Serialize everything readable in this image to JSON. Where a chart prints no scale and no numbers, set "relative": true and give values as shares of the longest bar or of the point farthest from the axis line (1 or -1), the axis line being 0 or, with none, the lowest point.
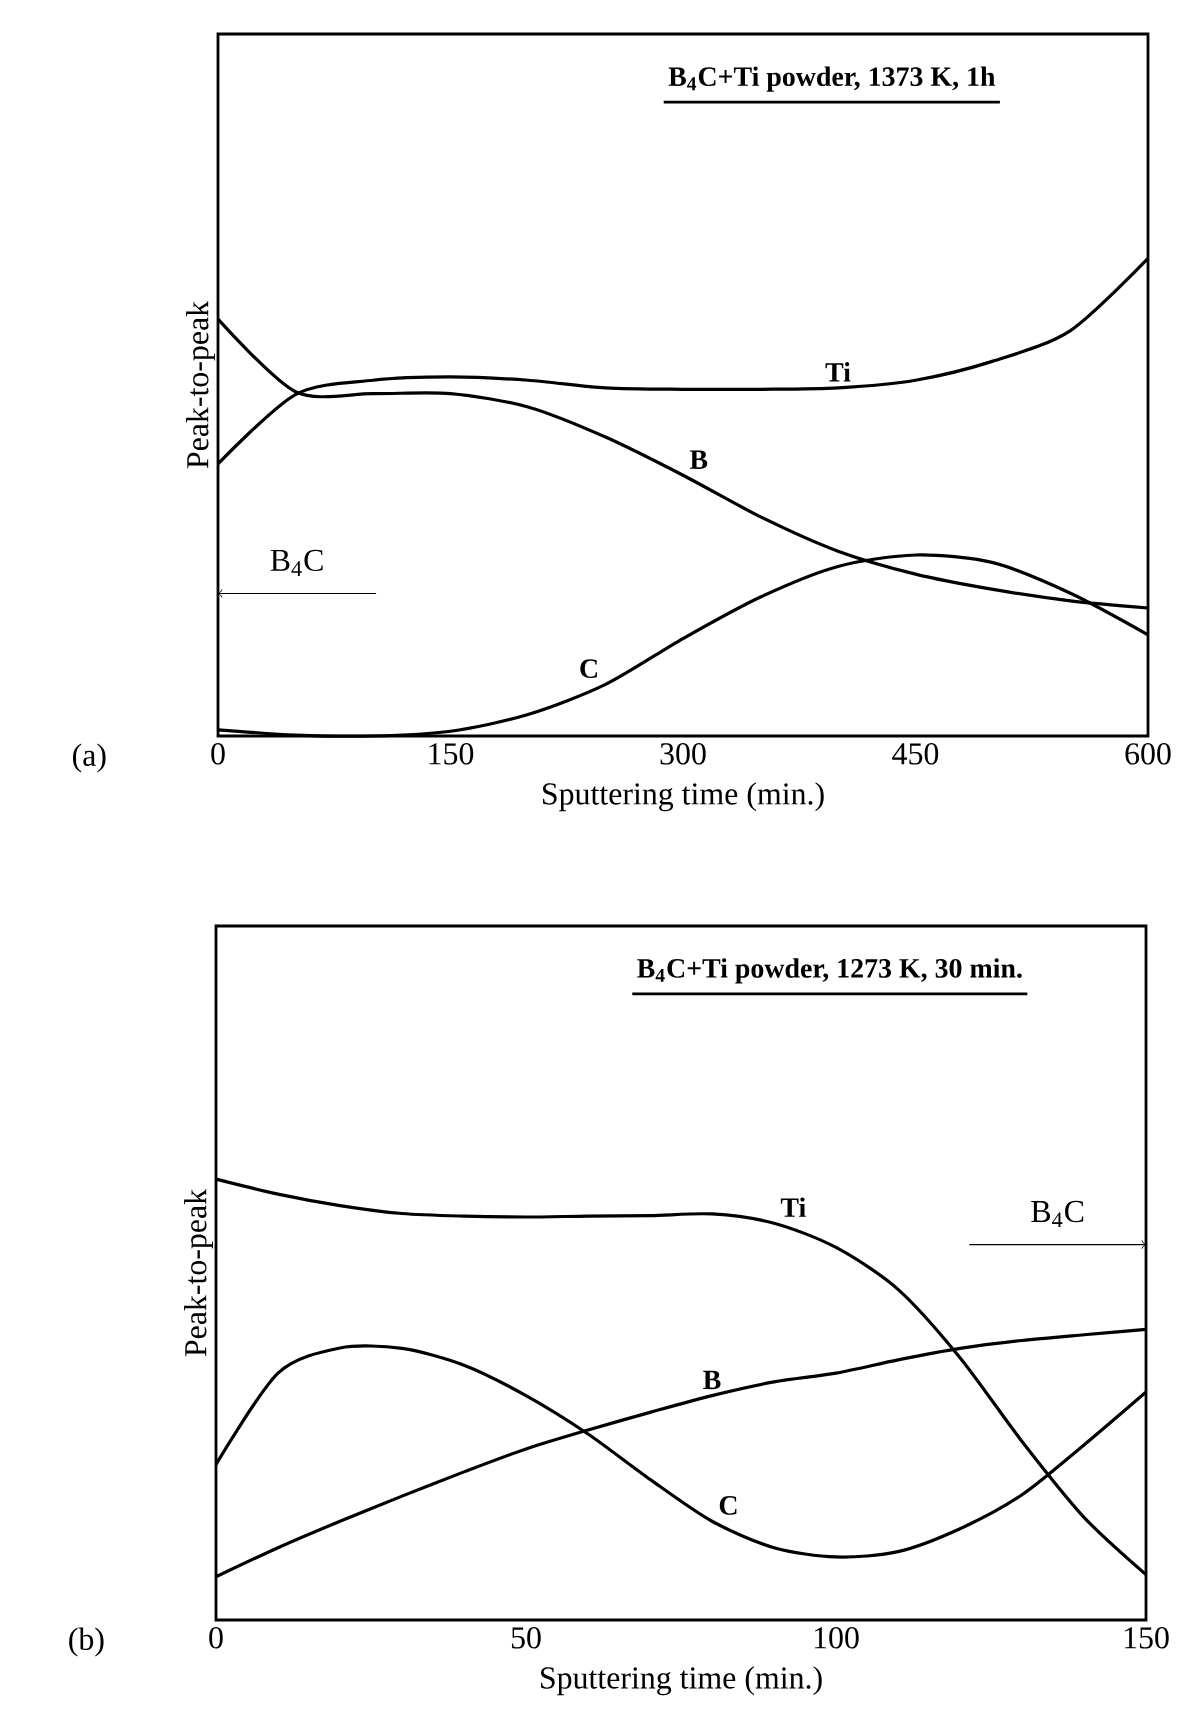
{
  "chart_data": [
    {
      "type": "line",
      "title": "B$_{4}$C+Ti powder, 1373 K, 1h",
      "xlabel": "Sputtering time (min.)",
      "ylabel": "Peak-to-peak",
      "relative": true,
      "xlim": [
        0,
        600
      ],
      "xticks": [
        0,
        150,
        300,
        450,
        600
      ],
      "x": [
        0,
        50,
        100,
        150,
        200,
        250,
        300,
        350,
        400,
        450,
        500,
        550,
        600
      ],
      "series": [
        {
          "name": "Ti",
          "color": "#000000",
          "values": [
            0.57,
            0.715,
            0.745,
            0.752,
            0.745,
            0.729,
            0.726,
            0.726,
            0.729,
            0.745,
            0.785,
            0.849,
            1.0
          ]
        },
        {
          "name": "B",
          "color": "#000000",
          "values": [
            0.873,
            0.721,
            0.717,
            0.717,
            0.689,
            0.626,
            0.546,
            0.459,
            0.387,
            0.339,
            0.307,
            0.283,
            0.268
          ]
        },
        {
          "name": "C",
          "color": "#000000",
          "values": [
            0.013,
            0.002,
            0.0,
            0.01,
            0.045,
            0.108,
            0.204,
            0.291,
            0.355,
            0.379,
            0.363,
            0.299,
            0.212
          ]
        }
      ],
      "annotations": [
        "(a)",
        "B$_{4}$C"
      ]
    },
    {
      "type": "line",
      "title": "B$_{4}$C+Ti powder, 1273 K, 30 min.",
      "xlabel": "Sputtering time (min.)",
      "ylabel": "Peak-to-peak",
      "relative": true,
      "xlim": [
        0,
        150
      ],
      "xticks": [
        0,
        50,
        100,
        150
      ],
      "x": [
        0,
        10,
        20,
        30,
        40,
        50,
        60,
        70,
        80,
        90,
        100,
        110,
        120,
        130,
        140,
        150
      ],
      "series": [
        {
          "name": "Ti",
          "color": "#000000",
          "values": [
            1.0,
            0.966,
            0.94,
            0.922,
            0.916,
            0.914,
            0.916,
            0.917,
            0.921,
            0.9,
            0.845,
            0.75,
            0.595,
            0.405,
            0.233,
            0.103
          ]
        },
        {
          "name": "B",
          "color": "#000000",
          "values": [
            0.098,
            0.164,
            0.224,
            0.281,
            0.336,
            0.388,
            0.431,
            0.471,
            0.509,
            0.54,
            0.56,
            0.59,
            0.616,
            0.634,
            0.647,
            0.659
          ]
        },
        {
          "name": "C",
          "color": "#000000",
          "values": [
            0.353,
            0.56,
            0.617,
            0.616,
            0.578,
            0.509,
            0.422,
            0.319,
            0.224,
            0.164,
            0.143,
            0.155,
            0.207,
            0.284,
            0.397,
            0.517
          ]
        }
      ],
      "annotations": [
        "(b)",
        "B$_{4}$C"
      ]
    }
  ]
}
